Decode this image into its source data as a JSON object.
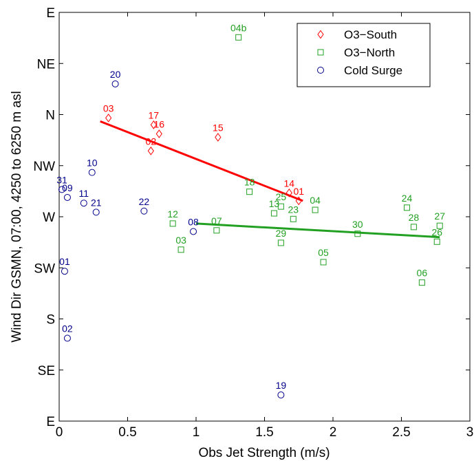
{
  "chart_data": {
    "type": "scatter",
    "xlabel": "Obs Jet Strength (m/s)",
    "ylabel": "Wind Dir GSMN, 07:00, 4250 to 6250 m asl",
    "xlim": [
      0,
      3
    ],
    "ylim_deg": [
      90,
      450
    ],
    "x_ticks": [
      0,
      0.5,
      1,
      1.5,
      2,
      2.5,
      3
    ],
    "x_tick_labels": [
      "0",
      "0.5",
      "1",
      "1.5",
      "2",
      "2.5",
      "3"
    ],
    "y_ticks": [
      {
        "deg": 90,
        "label": "E"
      },
      {
        "deg": 135,
        "label": "SE"
      },
      {
        "deg": 180,
        "label": "S"
      },
      {
        "deg": 225,
        "label": "SW"
      },
      {
        "deg": 270,
        "label": "W"
      },
      {
        "deg": 315,
        "label": "NW"
      },
      {
        "deg": 360,
        "label": "N"
      },
      {
        "deg": 405,
        "label": "NE"
      },
      {
        "deg": 450,
        "label": "E"
      }
    ],
    "grid": false,
    "legend_position": "top-right",
    "series": [
      {
        "name": "O3−South",
        "marker": "diamond",
        "color": "#ff0000",
        "points": [
          {
            "x": 0.36,
            "y": 357,
            "label": "03"
          },
          {
            "x": 0.69,
            "y": 351,
            "label": "17"
          },
          {
            "x": 0.73,
            "y": 343,
            "label": "16"
          },
          {
            "x": 0.67,
            "y": 328,
            "label": "02"
          },
          {
            "x": 1.16,
            "y": 340,
            "label": "15"
          },
          {
            "x": 1.68,
            "y": 291,
            "label": "14"
          },
          {
            "x": 1.75,
            "y": 284,
            "label": "01"
          }
        ],
        "fit": {
          "x1": 0.3,
          "y1": 354,
          "x2": 1.78,
          "y2": 284
        }
      },
      {
        "name": "O3−North",
        "marker": "square",
        "color": "#22a022",
        "points": [
          {
            "x": 1.31,
            "y": 428,
            "label": "04b"
          },
          {
            "x": 1.39,
            "y": 292,
            "label": "18"
          },
          {
            "x": 1.57,
            "y": 273,
            "label": "13"
          },
          {
            "x": 1.62,
            "y": 279,
            "label": "25"
          },
          {
            "x": 1.71,
            "y": 268,
            "label": "23"
          },
          {
            "x": 1.87,
            "y": 276,
            "label": "04"
          },
          {
            "x": 0.83,
            "y": 264,
            "label": "12"
          },
          {
            "x": 1.15,
            "y": 258,
            "label": "07"
          },
          {
            "x": 0.89,
            "y": 241,
            "label": "03"
          },
          {
            "x": 1.62,
            "y": 247,
            "label": "29"
          },
          {
            "x": 2.18,
            "y": 255,
            "label": "30"
          },
          {
            "x": 1.93,
            "y": 230,
            "label": "05"
          },
          {
            "x": 2.54,
            "y": 278,
            "label": "24"
          },
          {
            "x": 2.59,
            "y": 261,
            "label": "28"
          },
          {
            "x": 2.78,
            "y": 262,
            "label": "27"
          },
          {
            "x": 2.76,
            "y": 248,
            "label": "26"
          },
          {
            "x": 2.65,
            "y": 212,
            "label": "06"
          }
        ],
        "fit": {
          "x1": 1.0,
          "y1": 264,
          "x2": 2.78,
          "y2": 252
        }
      },
      {
        "name": "Cold Surge",
        "marker": "circle",
        "color": "#00008b",
        "points": [
          {
            "x": 0.41,
            "y": 387,
            "label": "20"
          },
          {
            "x": 0.24,
            "y": 309,
            "label": "10"
          },
          {
            "x": 0.02,
            "y": 294,
            "label": "31"
          },
          {
            "x": 0.06,
            "y": 287,
            "label": "09"
          },
          {
            "x": 0.18,
            "y": 282,
            "label": "11"
          },
          {
            "x": 0.27,
            "y": 274,
            "label": "21"
          },
          {
            "x": 0.62,
            "y": 275,
            "label": "22"
          },
          {
            "x": 0.98,
            "y": 257,
            "label": "08"
          },
          {
            "x": 0.04,
            "y": 222,
            "label": "01"
          },
          {
            "x": 0.06,
            "y": 163,
            "label": "02"
          },
          {
            "x": 1.62,
            "y": 113,
            "label": "19"
          }
        ]
      }
    ]
  }
}
